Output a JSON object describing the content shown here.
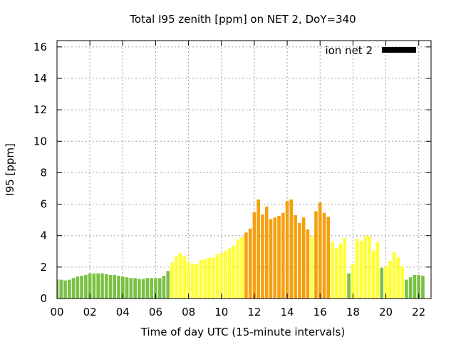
{
  "chart_data": {
    "type": "bar",
    "title": "Total I95 zenith [ppm] on NET 2, DoY=340",
    "xlabel": "Time of day UTC (15-minute intervals)",
    "ylabel": "I95 [ppm]",
    "xlim": [
      0,
      22.75
    ],
    "ylim": [
      0,
      16.4
    ],
    "x_ticks": [
      "00",
      "02",
      "04",
      "06",
      "08",
      "10",
      "12",
      "14",
      "16",
      "18",
      "20",
      "22"
    ],
    "x_tick_values": [
      0,
      2,
      4,
      6,
      8,
      10,
      12,
      14,
      16,
      18,
      20,
      22
    ],
    "y_ticks": [
      "0",
      "2",
      "4",
      "6",
      "8",
      "10",
      "12",
      "14",
      "16"
    ],
    "y_tick_values": [
      0,
      2,
      4,
      6,
      8,
      10,
      12,
      14,
      16
    ],
    "grid": true,
    "legend": {
      "placement": "top-right",
      "label": "ion net 2",
      "color": "#000000"
    },
    "bar_interval_hours": 0.25,
    "colors": {
      "green": "#7ac143",
      "yellow": "#ffff33",
      "orange": "#f5a00f"
    },
    "series": [
      {
        "values": [
          1.2,
          1.2,
          1.15,
          1.2,
          1.3,
          1.4,
          1.45,
          1.5,
          1.6,
          1.6,
          1.6,
          1.6,
          1.55,
          1.5,
          1.5,
          1.45,
          1.4,
          1.35,
          1.3,
          1.3,
          1.25,
          1.25,
          1.3,
          1.3,
          1.3,
          1.3,
          1.45,
          1.75,
          2.3,
          2.7,
          2.9,
          2.7,
          2.35,
          2.2,
          2.2,
          2.45,
          2.5,
          2.6,
          2.6,
          2.8,
          2.9,
          3.05,
          3.2,
          3.35,
          3.75,
          3.9,
          4.2,
          4.45,
          5.5,
          6.3,
          5.35,
          5.85,
          5.05,
          5.15,
          5.25,
          5.45,
          6.2,
          6.3,
          5.3,
          4.8,
          5.15,
          4.4,
          3.95,
          5.55,
          6.1,
          5.45,
          5.2,
          3.6,
          3.2,
          3.5,
          3.85,
          1.6,
          2.2,
          3.8,
          3.65,
          4.0,
          3.95,
          3.05,
          3.6,
          1.95,
          2.05,
          2.4,
          2.95,
          2.65,
          2.05,
          1.2,
          1.35,
          1.5,
          1.5,
          1.45
        ],
        "colors": [
          "green",
          "green",
          "green",
          "green",
          "green",
          "green",
          "green",
          "green",
          "green",
          "green",
          "green",
          "green",
          "green",
          "green",
          "green",
          "green",
          "green",
          "green",
          "green",
          "green",
          "green",
          "green",
          "green",
          "green",
          "green",
          "green",
          "green",
          "green",
          "yellow",
          "yellow",
          "yellow",
          "yellow",
          "yellow",
          "yellow",
          "yellow",
          "yellow",
          "yellow",
          "yellow",
          "yellow",
          "yellow",
          "yellow",
          "yellow",
          "yellow",
          "yellow",
          "yellow",
          "yellow",
          "orange",
          "orange",
          "orange",
          "orange",
          "orange",
          "orange",
          "orange",
          "orange",
          "orange",
          "orange",
          "orange",
          "orange",
          "orange",
          "orange",
          "orange",
          "orange",
          "yellow",
          "orange",
          "orange",
          "orange",
          "orange",
          "yellow",
          "yellow",
          "yellow",
          "yellow",
          "green",
          "yellow",
          "yellow",
          "yellow",
          "yellow",
          "yellow",
          "yellow",
          "yellow",
          "green",
          "yellow",
          "yellow",
          "yellow",
          "yellow",
          "yellow",
          "green",
          "green",
          "green",
          "green",
          "green"
        ]
      }
    ]
  }
}
